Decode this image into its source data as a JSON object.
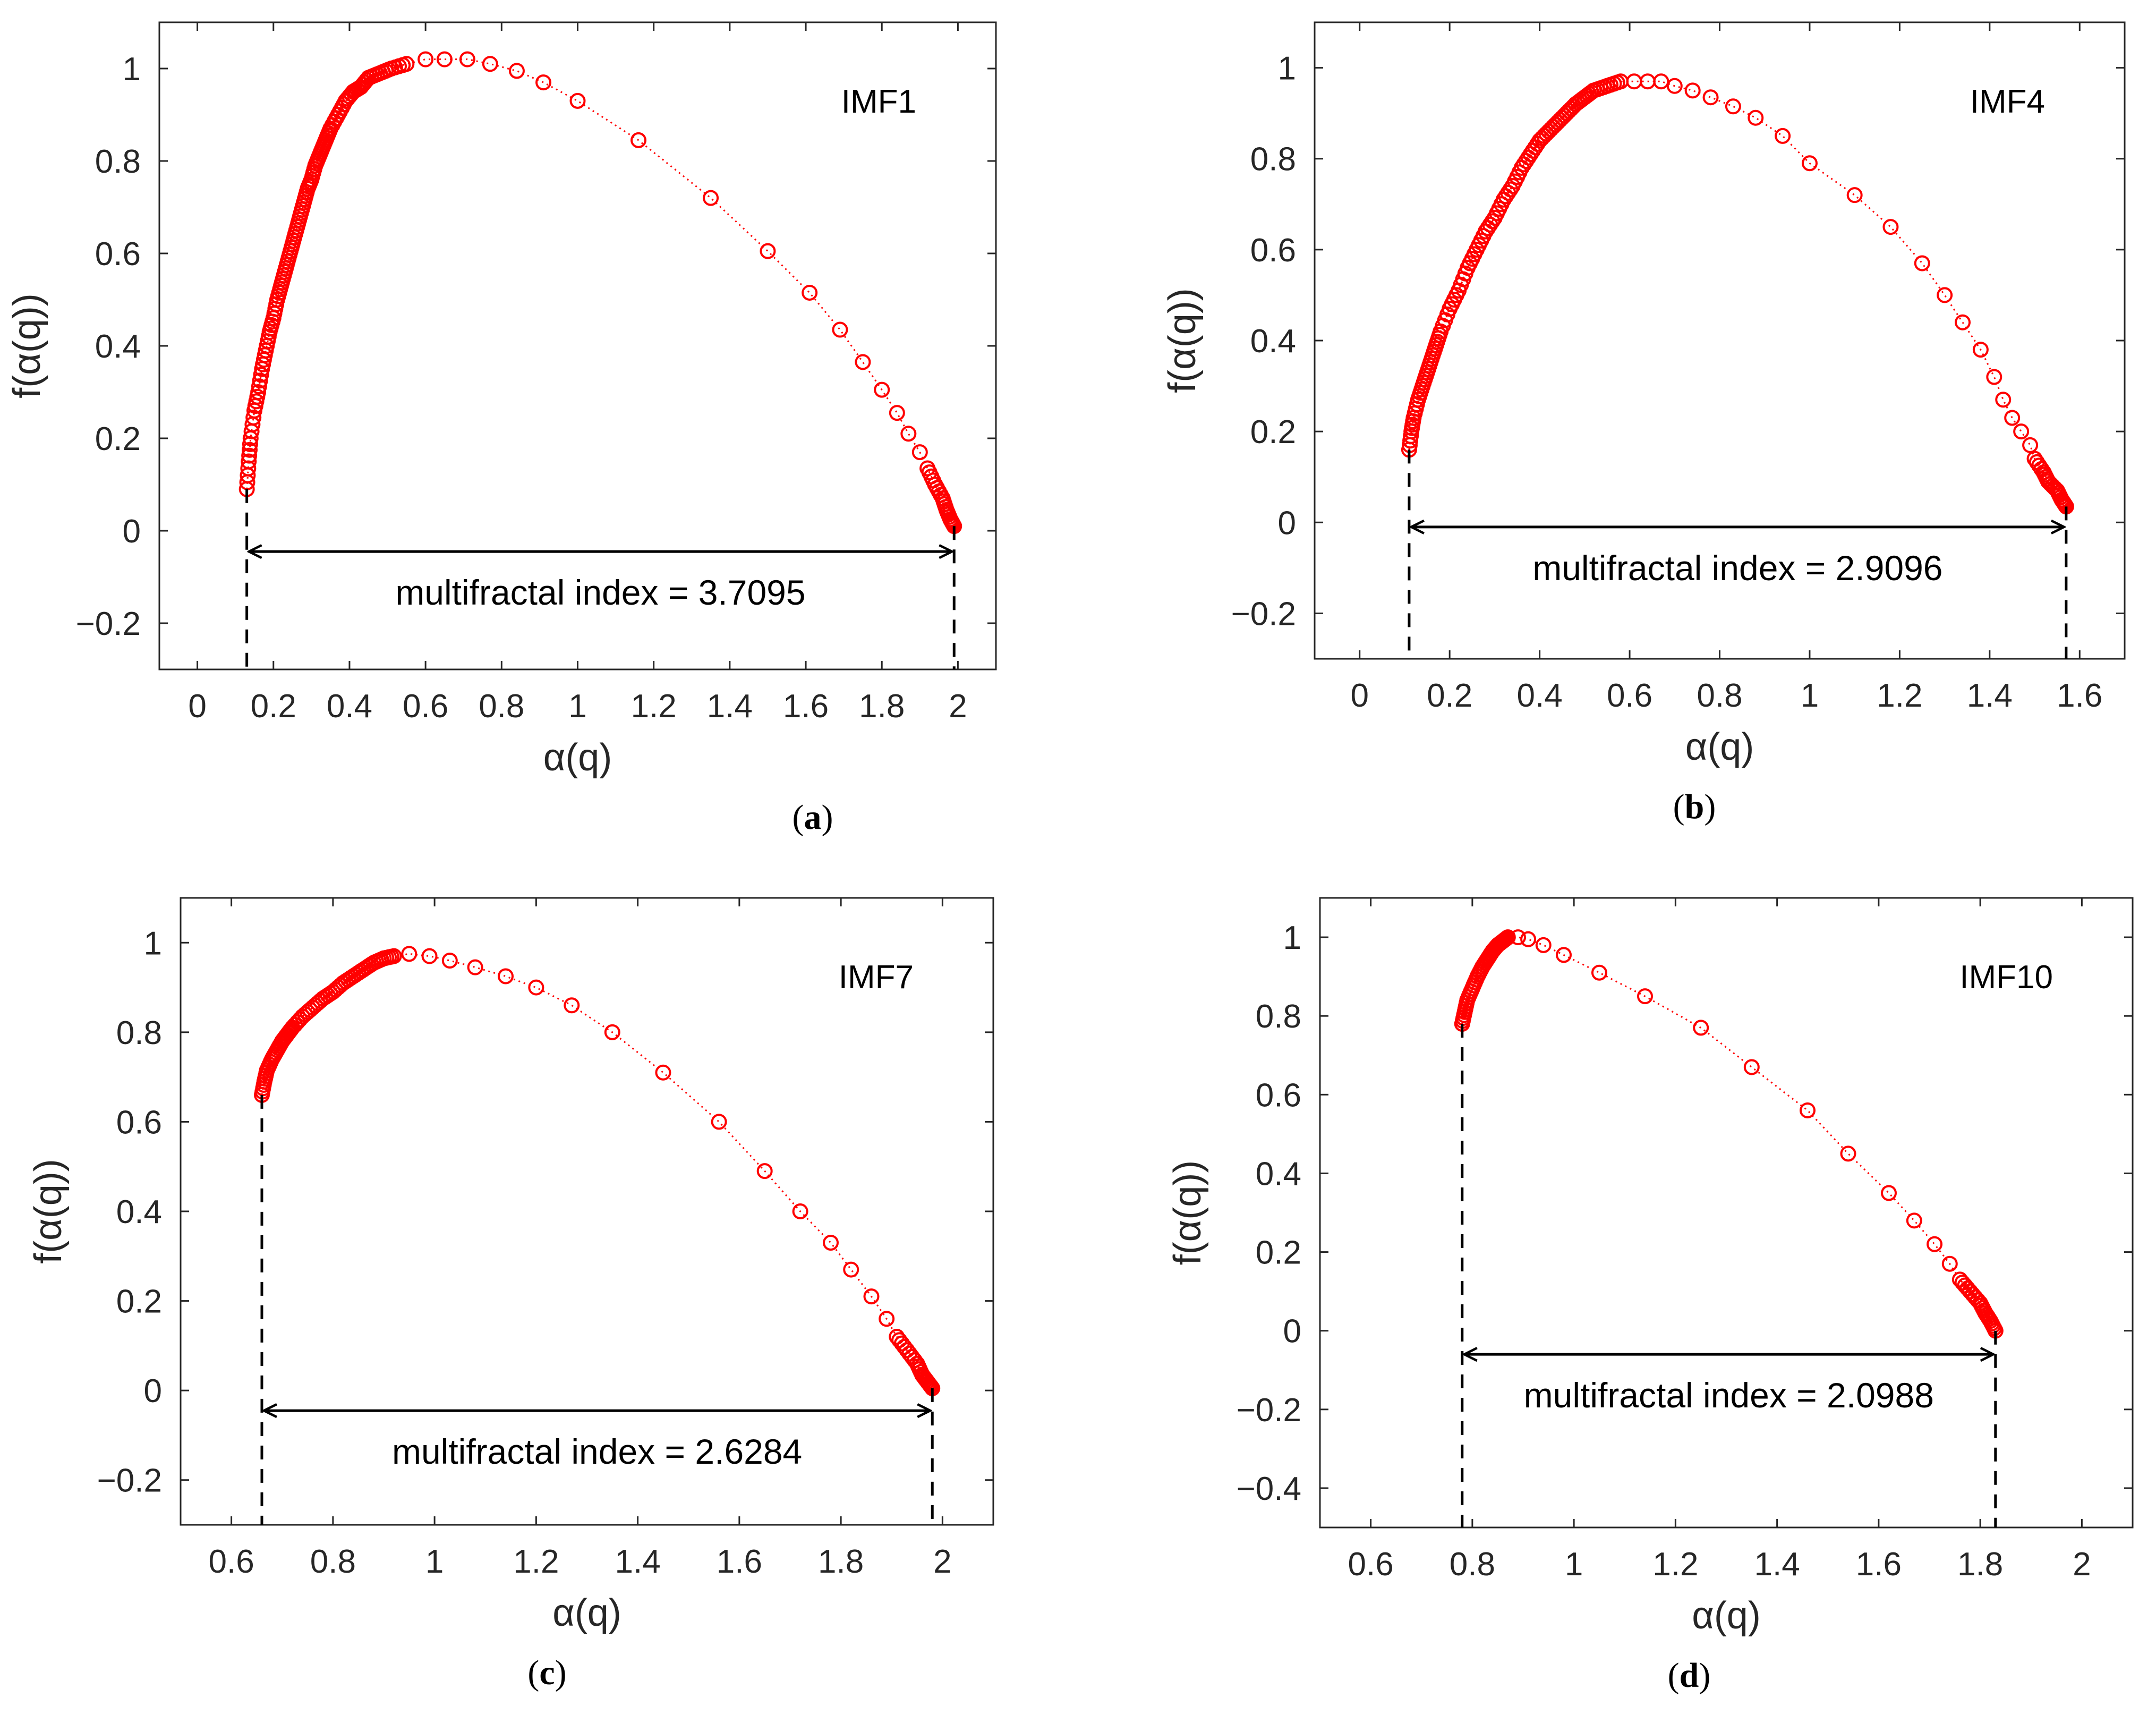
{
  "figure": {
    "marker_color": "#ff0000",
    "axis_color": "#262626"
  },
  "chart_data": [
    {
      "type": "scatter",
      "panel_label": "a",
      "tag": "IMF1",
      "xlabel": "α(q)",
      "ylabel": "f(α(q))",
      "xlim": [
        -0.1,
        2.1
      ],
      "ylim": [
        -0.3,
        1.1
      ],
      "xticks": [
        "0",
        "0.2",
        "0.4",
        "0.6",
        "0.8",
        "1",
        "1.2",
        "1.4",
        "1.6",
        "1.8",
        "2"
      ],
      "yticks": [
        "−0.2",
        "0",
        "0.2",
        "0.4",
        "0.6",
        "0.8",
        "1"
      ],
      "alpha_min": 0.13,
      "f_min": 0.09,
      "alpha_max": 1.99,
      "f_max": 0.01,
      "peak_alpha": 0.65,
      "peak_f": 1.02,
      "arrow_y": -0.045,
      "annotation": "multifractal index = 3.7095",
      "left_points": [
        [
          0.13,
          0.09
        ],
        [
          0.135,
          0.15
        ],
        [
          0.14,
          0.2
        ],
        [
          0.15,
          0.26
        ],
        [
          0.16,
          0.3
        ],
        [
          0.17,
          0.35
        ],
        [
          0.18,
          0.39
        ],
        [
          0.19,
          0.43
        ],
        [
          0.2,
          0.46
        ],
        [
          0.21,
          0.5
        ],
        [
          0.22,
          0.53
        ],
        [
          0.23,
          0.56
        ],
        [
          0.24,
          0.59
        ],
        [
          0.25,
          0.62
        ],
        [
          0.26,
          0.65
        ],
        [
          0.27,
          0.68
        ],
        [
          0.28,
          0.71
        ],
        [
          0.29,
          0.74
        ],
        [
          0.3,
          0.76
        ],
        [
          0.31,
          0.79
        ],
        [
          0.32,
          0.81
        ],
        [
          0.33,
          0.83
        ],
        [
          0.34,
          0.85
        ],
        [
          0.35,
          0.87
        ],
        [
          0.37,
          0.9
        ],
        [
          0.39,
          0.93
        ],
        [
          0.41,
          0.95
        ],
        [
          0.43,
          0.96
        ],
        [
          0.45,
          0.98
        ],
        [
          0.48,
          0.99
        ],
        [
          0.51,
          1.0
        ],
        [
          0.55,
          1.01
        ]
      ],
      "right_points": [
        [
          0.6,
          1.02
        ],
        [
          0.65,
          1.02
        ],
        [
          0.71,
          1.02
        ],
        [
          0.77,
          1.01
        ],
        [
          0.84,
          0.995
        ],
        [
          0.91,
          0.97
        ],
        [
          1.0,
          0.93
        ],
        [
          1.16,
          0.845
        ],
        [
          1.35,
          0.72
        ],
        [
          1.5,
          0.605
        ],
        [
          1.61,
          0.515
        ],
        [
          1.69,
          0.435
        ],
        [
          1.75,
          0.365
        ],
        [
          1.8,
          0.305
        ],
        [
          1.84,
          0.255
        ],
        [
          1.87,
          0.21
        ],
        [
          1.9,
          0.17
        ],
        [
          1.92,
          0.135
        ],
        [
          1.94,
          0.1
        ],
        [
          1.96,
          0.07
        ],
        [
          1.97,
          0.045
        ],
        [
          1.98,
          0.025
        ],
        [
          1.99,
          0.01
        ]
      ]
    },
    {
      "type": "scatter",
      "panel_label": "b",
      "tag": "IMF4",
      "xlabel": "α(q)",
      "ylabel": "f(α(q))",
      "xlim": [
        -0.1,
        1.7
      ],
      "ylim": [
        -0.3,
        1.1
      ],
      "xticks": [
        "0",
        "0.2",
        "0.4",
        "0.6",
        "0.8",
        "1",
        "1.2",
        "1.4",
        "1.6"
      ],
      "yticks": [
        "−0.2",
        "0",
        "0.2",
        "0.4",
        "0.6",
        "0.8",
        "1"
      ],
      "alpha_min": 0.11,
      "f_min": 0.16,
      "alpha_max": 1.57,
      "f_max": 0.035,
      "peak_alpha": 0.64,
      "peak_f": 0.97,
      "arrow_y": -0.01,
      "annotation": "multifractal index = 2.9096",
      "left_points": [
        [
          0.11,
          0.16
        ],
        [
          0.115,
          0.2
        ],
        [
          0.12,
          0.23
        ],
        [
          0.13,
          0.27
        ],
        [
          0.14,
          0.3
        ],
        [
          0.15,
          0.33
        ],
        [
          0.16,
          0.36
        ],
        [
          0.17,
          0.39
        ],
        [
          0.18,
          0.42
        ],
        [
          0.2,
          0.47
        ],
        [
          0.22,
          0.51
        ],
        [
          0.24,
          0.56
        ],
        [
          0.26,
          0.6
        ],
        [
          0.28,
          0.64
        ],
        [
          0.3,
          0.67
        ],
        [
          0.32,
          0.71
        ],
        [
          0.34,
          0.74
        ],
        [
          0.36,
          0.78
        ],
        [
          0.38,
          0.81
        ],
        [
          0.4,
          0.84
        ],
        [
          0.42,
          0.86
        ],
        [
          0.44,
          0.88
        ],
        [
          0.46,
          0.9
        ],
        [
          0.48,
          0.92
        ],
        [
          0.5,
          0.935
        ],
        [
          0.52,
          0.95
        ],
        [
          0.55,
          0.96
        ],
        [
          0.58,
          0.97
        ]
      ],
      "right_points": [
        [
          0.61,
          0.97
        ],
        [
          0.64,
          0.97
        ],
        [
          0.67,
          0.97
        ],
        [
          0.7,
          0.96
        ],
        [
          0.74,
          0.95
        ],
        [
          0.78,
          0.935
        ],
        [
          0.83,
          0.915
        ],
        [
          0.88,
          0.89
        ],
        [
          0.94,
          0.85
        ],
        [
          1.0,
          0.79
        ],
        [
          1.1,
          0.72
        ],
        [
          1.18,
          0.65
        ],
        [
          1.25,
          0.57
        ],
        [
          1.3,
          0.5
        ],
        [
          1.34,
          0.44
        ],
        [
          1.38,
          0.38
        ],
        [
          1.41,
          0.32
        ],
        [
          1.43,
          0.27
        ],
        [
          1.45,
          0.23
        ],
        [
          1.47,
          0.2
        ],
        [
          1.49,
          0.17
        ],
        [
          1.5,
          0.14
        ],
        [
          1.52,
          0.11
        ],
        [
          1.53,
          0.09
        ],
        [
          1.55,
          0.07
        ],
        [
          1.56,
          0.05
        ],
        [
          1.57,
          0.035
        ]
      ]
    },
    {
      "type": "scatter",
      "panel_label": "c",
      "tag": "IMF7",
      "xlabel": "α(q)",
      "ylabel": "f(α(q))",
      "xlim": [
        0.5,
        2.1
      ],
      "ylim": [
        -0.3,
        1.1
      ],
      "xticks": [
        "0.6",
        "0.8",
        "1",
        "1.2",
        "1.4",
        "1.6",
        "1.8",
        "2"
      ],
      "yticks": [
        "−0.2",
        "0",
        "0.2",
        "0.4",
        "0.6",
        "0.8",
        "1"
      ],
      "alpha_min": 0.66,
      "f_min": 0.66,
      "alpha_max": 1.98,
      "f_max": 0.005,
      "peak_alpha": 0.93,
      "peak_f": 0.975,
      "arrow_y": -0.045,
      "annotation": "multifractal index = 2.6284",
      "left_points": [
        [
          0.66,
          0.66
        ],
        [
          0.665,
          0.69
        ],
        [
          0.67,
          0.715
        ],
        [
          0.68,
          0.74
        ],
        [
          0.69,
          0.76
        ],
        [
          0.7,
          0.78
        ],
        [
          0.71,
          0.795
        ],
        [
          0.72,
          0.81
        ],
        [
          0.74,
          0.835
        ],
        [
          0.76,
          0.855
        ],
        [
          0.78,
          0.875
        ],
        [
          0.8,
          0.89
        ],
        [
          0.82,
          0.91
        ],
        [
          0.84,
          0.925
        ],
        [
          0.86,
          0.94
        ],
        [
          0.88,
          0.955
        ],
        [
          0.9,
          0.965
        ],
        [
          0.92,
          0.97
        ]
      ],
      "right_points": [
        [
          0.95,
          0.975
        ],
        [
          0.99,
          0.97
        ],
        [
          1.03,
          0.96
        ],
        [
          1.08,
          0.945
        ],
        [
          1.14,
          0.925
        ],
        [
          1.2,
          0.9
        ],
        [
          1.27,
          0.86
        ],
        [
          1.35,
          0.8
        ],
        [
          1.45,
          0.71
        ],
        [
          1.56,
          0.6
        ],
        [
          1.65,
          0.49
        ],
        [
          1.72,
          0.4
        ],
        [
          1.78,
          0.33
        ],
        [
          1.82,
          0.27
        ],
        [
          1.86,
          0.21
        ],
        [
          1.89,
          0.16
        ],
        [
          1.91,
          0.12
        ],
        [
          1.93,
          0.09
        ],
        [
          1.95,
          0.06
        ],
        [
          1.96,
          0.035
        ],
        [
          1.97,
          0.02
        ],
        [
          1.98,
          0.005
        ]
      ]
    },
    {
      "type": "scatter",
      "panel_label": "d",
      "tag": "IMF10",
      "xlabel": "α(q)",
      "ylabel": "f(α(q))",
      "xlim": [
        0.5,
        2.1
      ],
      "ylim": [
        -0.5,
        1.1
      ],
      "xticks": [
        "0.6",
        "0.8",
        "1",
        "1.2",
        "1.4",
        "1.6",
        "1.8",
        "2"
      ],
      "yticks": [
        "−0.4",
        "−0.2",
        "0",
        "0.2",
        "0.4",
        "0.6",
        "0.8",
        "1"
      ],
      "alpha_min": 0.78,
      "f_min": 0.78,
      "alpha_max": 1.83,
      "f_max": 0.0,
      "peak_alpha": 0.88,
      "peak_f": 1.0,
      "arrow_y": -0.06,
      "annotation": "multifractal index = 2.0988",
      "left_points": [
        [
          0.78,
          0.78
        ],
        [
          0.785,
          0.81
        ],
        [
          0.79,
          0.84
        ],
        [
          0.8,
          0.87
        ],
        [
          0.81,
          0.9
        ],
        [
          0.82,
          0.925
        ],
        [
          0.83,
          0.945
        ],
        [
          0.84,
          0.965
        ],
        [
          0.85,
          0.98
        ],
        [
          0.86,
          0.99
        ],
        [
          0.87,
          1.0
        ]
      ],
      "right_points": [
        [
          0.89,
          1.0
        ],
        [
          0.91,
          0.995
        ],
        [
          0.94,
          0.98
        ],
        [
          0.98,
          0.955
        ],
        [
          1.05,
          0.91
        ],
        [
          1.14,
          0.85
        ],
        [
          1.25,
          0.77
        ],
        [
          1.35,
          0.67
        ],
        [
          1.46,
          0.56
        ],
        [
          1.54,
          0.45
        ],
        [
          1.62,
          0.35
        ],
        [
          1.67,
          0.28
        ],
        [
          1.71,
          0.22
        ],
        [
          1.74,
          0.17
        ],
        [
          1.76,
          0.13
        ],
        [
          1.78,
          0.1
        ],
        [
          1.8,
          0.07
        ],
        [
          1.81,
          0.045
        ],
        [
          1.82,
          0.025
        ],
        [
          1.83,
          0.0
        ]
      ]
    }
  ]
}
